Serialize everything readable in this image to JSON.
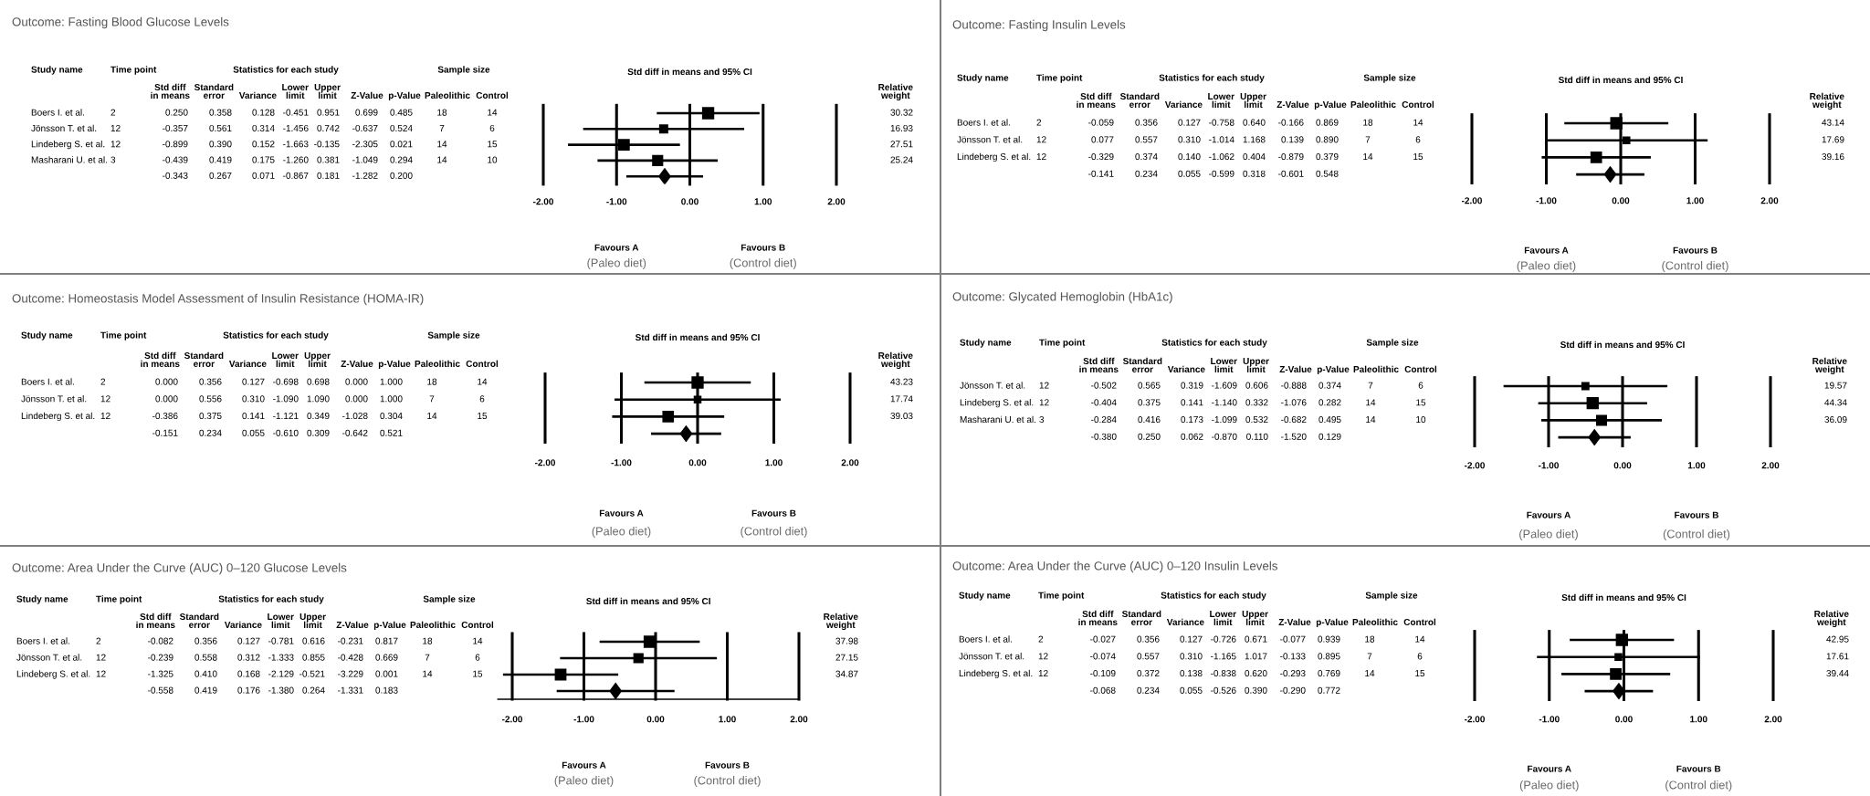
{
  "chart_data": [
    {
      "type": "scatter",
      "xlabel": "Std diff in means and 95% CI",
      "orientation": "horizontal",
      "categories": [
        null,
        null,
        null,
        null,
        null
      ],
      "series": [
        {
          "type": "bubble",
          "marker": "square",
          "color": "#000000",
          "values": [
            0.25,
            -0.357,
            -0.899,
            -0.439,
            null
          ],
          "errors": [
            [
              -0.451,
              0.951
            ],
            [
              -1.456,
              0.742
            ],
            [
              -1.663,
              -0.135
            ],
            [
              -1.26,
              0.381
            ],
            null
          ],
          "sizes": [
            1,
            0.56,
            0.91,
            0.83,
            null
          ]
        },
        {
          "marker": "diamond",
          "color": "#000000",
          "values": [
            null,
            null,
            null,
            null,
            -0.343
          ],
          "errors": [
            null,
            null,
            null,
            null,
            [
              -0.867,
              0.181
            ]
          ]
        }
      ],
      "xlim": [
        -2,
        2
      ],
      "xticks": [
        {
          "value": -2,
          "label": "-2.00"
        },
        {
          "value": -1,
          "label": "-1.00"
        },
        {
          "value": 0,
          "label": "0.00"
        },
        {
          "value": 1,
          "label": "1.00"
        },
        {
          "value": 2,
          "label": "2.00"
        }
      ],
      "grid": "x",
      "annotations": [
        "Outcome: Fasting Blood Glucose Levels",
        "Study name",
        "Time point",
        "Statistics for each study",
        "Sample size",
        "Std diff\nin means",
        "Standard\nerror",
        "Variance",
        "Lower\nlimit",
        "Upper\nlimit",
        "Z-Value",
        "p-Value",
        "Paleolithic",
        "Control",
        "Relative\nweight",
        "Favours A",
        "(Paleo diet)",
        "Favours B",
        "(Control diet)",
        "Boers I. et al.",
        "2",
        "0.250",
        "0.358",
        "0.128",
        "-0.451",
        "0.951",
        "0.699",
        "0.485",
        "18",
        "14",
        "30.32",
        "Jönsson T. et al.",
        "12",
        "-0.357",
        "0.561",
        "0.314",
        "-1.456",
        "0.742",
        "-0.637",
        "0.524",
        "7",
        "6",
        "16.93",
        "Lindeberg S. et al.",
        "12",
        "-0.899",
        "0.390",
        "0.152",
        "-1.663",
        "-0.135",
        "-2.305",
        "0.021",
        "14",
        "15",
        "27.51",
        "Masharani U. et al.",
        "3",
        "-0.439",
        "0.419",
        "0.175",
        "-1.260",
        "0.381",
        "-1.049",
        "0.294",
        "14",
        "10",
        "25.24",
        "-0.343",
        "0.267",
        "0.071",
        "-0.867",
        "0.181",
        "-1.282",
        "0.200"
      ]
    },
    {
      "type": "scatter",
      "xlabel": "Std diff in means and 95% CI",
      "orientation": "horizontal",
      "categories": [
        null,
        null,
        null,
        null
      ],
      "series": [
        {
          "type": "bubble",
          "marker": "square",
          "color": "#000000",
          "values": [
            -0.059,
            0.077,
            -0.329,
            null
          ],
          "errors": [
            [
              -0.758,
              0.64
            ],
            [
              -1.014,
              1.168
            ],
            [
              -1.062,
              0.404
            ],
            null
          ],
          "sizes": [
            1,
            0.41,
            0.91,
            null
          ]
        },
        {
          "marker": "diamond",
          "color": "#000000",
          "values": [
            null,
            null,
            null,
            -0.141
          ],
          "errors": [
            null,
            null,
            null,
            [
              -0.599,
              0.318
            ]
          ]
        }
      ],
      "xlim": [
        -2,
        2
      ],
      "xticks": [
        {
          "value": -2,
          "label": "-2.00"
        },
        {
          "value": -1,
          "label": "-1.00"
        },
        {
          "value": 0,
          "label": "0.00"
        },
        {
          "value": 1,
          "label": "1.00"
        },
        {
          "value": 2,
          "label": "2.00"
        }
      ],
      "grid": "x",
      "annotations": [
        "Outcome: Fasting Insulin Levels",
        "Study name",
        "Time point",
        "Statistics for each study",
        "Sample size",
        "Std diff\nin means",
        "Standard\nerror",
        "Variance",
        "Lower\nlimit",
        "Upper\nlimit",
        "Z-Value",
        "p-Value",
        "Paleolithic",
        "Control",
        "Relative\nweight",
        "Favours A",
        "(Paleo diet)",
        "Favours B",
        "(Control diet)",
        "Boers I. et al.",
        "2",
        "-0.059",
        "0.356",
        "0.127",
        "-0.758",
        "0.640",
        "-0.166",
        "0.869",
        "18",
        "14",
        "43.14",
        "Jönsson T. et al.",
        "12",
        "0.077",
        "0.557",
        "0.310",
        "-1.014",
        "1.168",
        "0.139",
        "0.890",
        "7",
        "6",
        "17.69",
        "Lindeberg S. et al.",
        "12",
        "-0.329",
        "0.374",
        "0.140",
        "-1.062",
        "0.404",
        "-0.879",
        "0.379",
        "14",
        "15",
        "39.16",
        "-0.141",
        "0.234",
        "0.055",
        "-0.599",
        "0.318",
        "-0.601",
        "0.548"
      ]
    },
    {
      "type": "scatter",
      "xlabel": "Std diff in means and 95% CI",
      "orientation": "horizontal",
      "categories": [
        null,
        null,
        null,
        null
      ],
      "series": [
        {
          "type": "bubble",
          "marker": "square",
          "color": "#000000",
          "values": [
            0.0,
            0.0,
            -0.386,
            null
          ],
          "errors": [
            [
              -0.698,
              0.698
            ],
            [
              -1.09,
              1.09
            ],
            [
              -1.121,
              0.349
            ],
            null
          ],
          "sizes": [
            1,
            0.41,
            0.9,
            null
          ]
        },
        {
          "marker": "diamond",
          "color": "#000000",
          "values": [
            null,
            null,
            null,
            -0.151
          ],
          "errors": [
            null,
            null,
            null,
            [
              -0.61,
              0.309
            ]
          ]
        }
      ],
      "xlim": [
        -2,
        2
      ],
      "xticks": [
        {
          "value": -2,
          "label": "-2.00"
        },
        {
          "value": -1,
          "label": "-1.00"
        },
        {
          "value": 0,
          "label": "0.00"
        },
        {
          "value": 1,
          "label": "1.00"
        },
        {
          "value": 2,
          "label": "2.00"
        }
      ],
      "grid": "x",
      "annotations": [
        "Outcome: Homeostasis Model Assessment of Insulin Resistance (HOMA-IR)",
        "Study name",
        "Time point",
        "Statistics for each study",
        "Sample size",
        "Std diff\nin means",
        "Standard\nerror",
        "Variance",
        "Lower\nlimit",
        "Upper\nlimit",
        "Z-Value",
        "p-Value",
        "Paleolithic",
        "Control",
        "Relative\nweight",
        "Favours A",
        "(Paleo diet)",
        "Favours B",
        "(Control diet)",
        "Boers I. et al.",
        "2",
        "0.000",
        "0.356",
        "0.127",
        "-0.698",
        "0.698",
        "0.000",
        "1.000",
        "18",
        "14",
        "43.23",
        "Jönsson T. et al.",
        "12",
        "0.000",
        "0.556",
        "0.310",
        "-1.090",
        "1.090",
        "0.000",
        "1.000",
        "7",
        "6",
        "17.74",
        "Lindeberg S. et al.",
        "12",
        "-0.386",
        "0.375",
        "0.141",
        "-1.121",
        "0.349",
        "-1.028",
        "0.304",
        "14",
        "15",
        "39.03",
        "-0.151",
        "0.234",
        "0.055",
        "-0.610",
        "0.309",
        "-0.642",
        "0.521"
      ]
    },
    {
      "type": "scatter",
      "xlabel": "Std diff in means and 95% CI",
      "orientation": "horizontal",
      "categories": [
        null,
        null,
        null,
        null
      ],
      "series": [
        {
          "type": "bubble",
          "marker": "square",
          "color": "#000000",
          "values": [
            -0.502,
            -0.404,
            -0.284,
            null
          ],
          "errors": [
            [
              -1.609,
              0.606
            ],
            [
              -1.14,
              0.332
            ],
            [
              -1.099,
              0.532
            ],
            null
          ],
          "sizes": [
            0.44,
            1,
            0.81,
            null
          ]
        },
        {
          "marker": "diamond",
          "color": "#000000",
          "values": [
            null,
            null,
            null,
            -0.38
          ],
          "errors": [
            null,
            null,
            null,
            [
              -0.87,
              0.11
            ]
          ]
        }
      ],
      "xlim": [
        -2,
        2
      ],
      "xticks": [
        {
          "value": -2,
          "label": "-2.00"
        },
        {
          "value": -1,
          "label": "-1.00"
        },
        {
          "value": 0,
          "label": "0.00"
        },
        {
          "value": 1,
          "label": "1.00"
        },
        {
          "value": 2,
          "label": "2.00"
        }
      ],
      "grid": "x",
      "annotations": [
        "Outcome: Glycated Hemoglobin (HbA1c)",
        "Study name",
        "Time point",
        "Statistics for each study",
        "Sample size",
        "Std diff\nin means",
        "Standard\nerror",
        "Variance",
        "Lower\nlimit",
        "Upper\nlimit",
        "Z-Value",
        "p-Value",
        "Paleolithic",
        "Control",
        "Relative\nweight",
        "Favours A",
        "(Paleo diet)",
        "Favours B",
        "(Control diet)",
        "Jönsson T. et al.",
        "12",
        "-0.502",
        "0.565",
        "0.319",
        "-1.609",
        "0.606",
        "-0.888",
        "0.374",
        "7",
        "6",
        "19.57",
        "Lindeberg S. et al.",
        "12",
        "-0.404",
        "0.375",
        "0.141",
        "-1.140",
        "0.332",
        "-1.076",
        "0.282",
        "14",
        "15",
        "44.34",
        "Masharani U. et al.",
        "3",
        "-0.284",
        "0.416",
        "0.173",
        "-1.099",
        "0.532",
        "-0.682",
        "0.495",
        "14",
        "10",
        "36.09",
        "-0.380",
        "0.250",
        "0.062",
        "-0.870",
        "0.110",
        "-1.520",
        "0.129"
      ]
    },
    {
      "type": "scatter",
      "xlabel": "Std diff in means and 95% CI",
      "orientation": "horizontal",
      "categories": [
        null,
        null,
        null,
        null
      ],
      "series": [
        {
          "type": "bubble",
          "marker": "square",
          "color": "#000000",
          "values": [
            -0.082,
            -0.239,
            -1.325,
            null
          ],
          "errors": [
            [
              -0.781,
              0.616
            ],
            [
              -1.333,
              0.855
            ],
            [
              -2.129,
              -0.521
            ],
            null
          ],
          "sizes": [
            1,
            0.71,
            0.92,
            null
          ]
        },
        {
          "marker": "diamond",
          "color": "#000000",
          "values": [
            null,
            null,
            null,
            -0.558
          ],
          "errors": [
            null,
            null,
            null,
            [
              -1.38,
              0.264
            ]
          ]
        }
      ],
      "xlim": [
        -2.2,
        2
      ],
      "xticks": [
        {
          "value": -2,
          "label": "-2.00"
        },
        {
          "value": -1,
          "label": "-1.00"
        },
        {
          "value": 0,
          "label": "0.00"
        },
        {
          "value": 1,
          "label": "1.00"
        },
        {
          "value": 2,
          "label": "2.00"
        }
      ],
      "grid": "x",
      "annotations": [
        "Outcome: Area Under the Curve (AUC) 0–120 Glucose Levels",
        "Study name",
        "Time point",
        "Statistics for each study",
        "Sample size",
        "Std diff\nin means",
        "Standard\nerror",
        "Variance",
        "Lower\nlimit",
        "Upper\nlimit",
        "Z-Value",
        "p-Value",
        "Paleolithic",
        "Control",
        "Relative\nweight",
        "Favours A",
        "(Paleo diet)",
        "Favours B",
        "(Control diet)",
        "Boers I. et al.",
        "2",
        "-0.082",
        "0.356",
        "0.127",
        "-0.781",
        "0.616",
        "-0.231",
        "0.817",
        "18",
        "14",
        "37.98",
        "Jönsson T. et al.",
        "12",
        "-0.239",
        "0.558",
        "0.312",
        "-1.333",
        "0.855",
        "-0.428",
        "0.669",
        "7",
        "6",
        "27.15",
        "Lindeberg S. et al.",
        "12",
        "-1.325",
        "0.410",
        "0.168",
        "-2.129",
        "-0.521",
        "-3.229",
        "0.001",
        "14",
        "15",
        "34.87",
        "-0.558",
        "0.419",
        "0.176",
        "-1.380",
        "0.264",
        "-1.331",
        "0.183"
      ]
    },
    {
      "type": "scatter",
      "xlabel": "Std diff in means and 95% CI",
      "orientation": "horizontal",
      "categories": [
        null,
        null,
        null,
        null
      ],
      "series": [
        {
          "type": "bubble",
          "marker": "square",
          "color": "#000000",
          "values": [
            -0.027,
            -0.074,
            -0.109,
            null
          ],
          "errors": [
            [
              -0.726,
              0.671
            ],
            [
              -1.165,
              1.017
            ],
            [
              -0.838,
              0.62
            ],
            null
          ],
          "sizes": [
            1,
            0.41,
            0.92,
            null
          ]
        },
        {
          "marker": "diamond",
          "color": "#000000",
          "values": [
            null,
            null,
            null,
            -0.068
          ],
          "errors": [
            null,
            null,
            null,
            [
              -0.526,
              0.39
            ]
          ]
        }
      ],
      "xlim": [
        -2,
        2
      ],
      "xticks": [
        {
          "value": -2,
          "label": "-2.00"
        },
        {
          "value": -1,
          "label": "-1.00"
        },
        {
          "value": 0,
          "label": "0.00"
        },
        {
          "value": 1,
          "label": "1.00"
        },
        {
          "value": 2,
          "label": "2.00"
        }
      ],
      "grid": "x",
      "annotations": [
        "Outcome: Area Under the Curve (AUC) 0–120 Insulin Levels",
        "Study name",
        "Time point",
        "Statistics for each study",
        "Sample size",
        "Std diff\nin means",
        "Standard\nerror",
        "Variance",
        "Lower\nlimit",
        "Upper\nlimit",
        "Z-Value",
        "p-Value",
        "Paleolithic",
        "Control",
        "Relative\nweight",
        "Favours A",
        "(Paleo diet)",
        "Favours B",
        "(Control diet)",
        "Boers I. et al.",
        "2",
        "-0.027",
        "0.356",
        "0.127",
        "-0.726",
        "0.671",
        "-0.077",
        "0.939",
        "18",
        "14",
        "42.95",
        "Jönsson T. et al.",
        "12",
        "-0.074",
        "0.557",
        "0.310",
        "-1.165",
        "1.017",
        "-0.133",
        "0.895",
        "7",
        "6",
        "17.61",
        "Lindeberg S. et al.",
        "12",
        "-0.109",
        "0.372",
        "0.138",
        "-0.838",
        "0.620",
        "-0.293",
        "0.769",
        "14",
        "15",
        "39.44",
        "-0.068",
        "0.234",
        "0.055",
        "-0.526",
        "0.390",
        "-0.290",
        "0.772"
      ]
    }
  ]
}
